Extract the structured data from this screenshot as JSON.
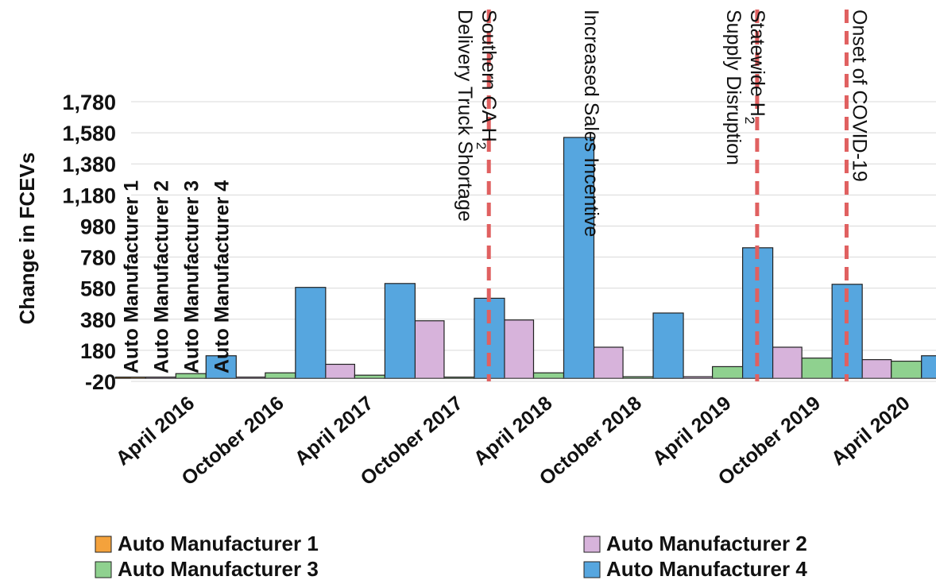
{
  "chart_data": {
    "type": "bar",
    "ylabel": "Change in FCEVs",
    "xlabel": "",
    "ylim": [
      -20,
      1780
    ],
    "yticks": [
      "-20",
      "180",
      "380",
      "580",
      "780",
      "980",
      "1,180",
      "1,380",
      "1,580",
      "1,780"
    ],
    "ytick_values": [
      -20,
      180,
      380,
      580,
      780,
      980,
      1180,
      1380,
      1580,
      1780
    ],
    "grid": true,
    "categories": [
      "April 2016",
      "October 2016",
      "April 2017",
      "October 2017",
      "April 2018",
      "October 2018",
      "April 2019",
      "October 2019",
      "April 2020"
    ],
    "series": [
      {
        "name": "Auto Manufacturer 1",
        "color": "#f4a23c",
        "values": [
          0,
          0,
          0,
          0,
          5,
          0,
          0,
          0,
          0
        ]
      },
      {
        "name": "Auto Manufacturer 2",
        "color": "#d7b3db",
        "values": [
          0,
          0,
          90,
          370,
          375,
          200,
          10,
          200,
          120
        ]
      },
      {
        "name": "Auto Manufacturer 3",
        "color": "#8fd18f",
        "values": [
          30,
          35,
          20,
          0,
          35,
          10,
          75,
          130,
          110
        ]
      },
      {
        "name": "Auto Manufacturer 4",
        "color": "#56a6df",
        "values": [
          145,
          585,
          610,
          515,
          1550,
          420,
          840,
          605,
          145
        ]
      }
    ],
    "events": [
      {
        "after_index": 3,
        "label": "Southern CA H",
        "sub": "2",
        "label2": "Delivery Truck Shortage"
      },
      {
        "after_index": 4,
        "label": "Increased Sales Incentive",
        "line": false
      },
      {
        "after_index": 6,
        "label": "Statewide H",
        "sub": "2",
        "label2": "Supply Disruption"
      },
      {
        "after_index": 7,
        "label": "Onset of COVID-19"
      }
    ],
    "event_line_color": "#e06060",
    "legend_position": "bottom"
  }
}
